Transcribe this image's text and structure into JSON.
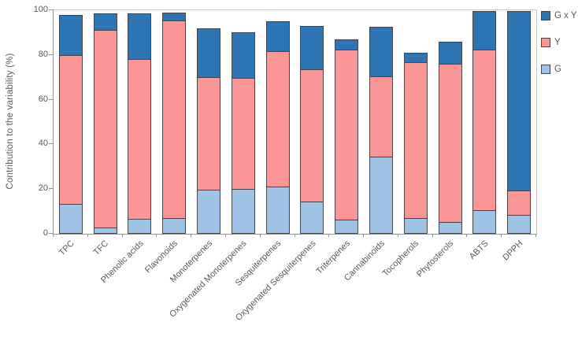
{
  "chart_data": {
    "type": "bar",
    "stacked": true,
    "title": "",
    "xlabel": "",
    "ylabel": "Contribution to the variability (%)",
    "ylim": [
      0,
      100
    ],
    "yticks": [
      0,
      20,
      40,
      60,
      80,
      100
    ],
    "grid": false,
    "legend_position": "right-top",
    "legend_order": [
      "G x Y",
      "Y",
      "G"
    ],
    "categories": [
      "TPC",
      "TFC",
      "Phenolic acids",
      "Flavonoids",
      "Monoterpenes",
      "Oxygenated Monoterpenes",
      "Sesquiterpenes",
      "Oxygenated Sesquiterpenes",
      "Triterpenes",
      "Cannabinoids",
      "Tocopherols",
      "Phytosterols",
      "ABTS",
      "DPPH"
    ],
    "series": [
      {
        "name": "G",
        "color": "#9DC3E6",
        "values": [
          12.8,
          2.2,
          6.2,
          6.5,
          19.0,
          19.5,
          20.5,
          14.0,
          5.6,
          34.0,
          6.4,
          4.5,
          10.0,
          7.7
        ]
      },
      {
        "name": "Y",
        "color": "#FC9696",
        "values": [
          67.0,
          88.8,
          71.8,
          88.9,
          51.0,
          50.0,
          61.1,
          59.5,
          76.9,
          36.2,
          70.3,
          71.6,
          72.3,
          11.2
        ]
      },
      {
        "name": "G x Y",
        "color": "#2E75B6",
        "values": [
          18.0,
          7.6,
          20.6,
          3.4,
          22.0,
          20.5,
          13.5,
          19.5,
          4.5,
          22.3,
          4.3,
          9.9,
          17.5,
          80.9
        ]
      }
    ]
  },
  "colors": {
    "bar_border": "#454545",
    "axis_line": "#949494",
    "frame_line": "#C6C6C6",
    "text": "#595959"
  }
}
